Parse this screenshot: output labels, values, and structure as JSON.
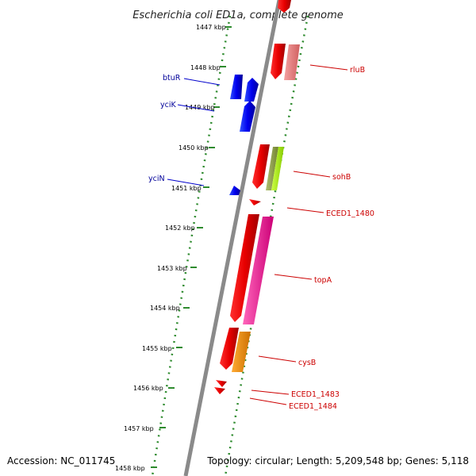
{
  "title": "Escherichia coli ED1a, complete genome",
  "footer": {
    "accession": "Accession: NC_011745",
    "topology": "Topology: circular; Length: 5,209,548 bp; Genes: 5,118"
  },
  "colors": {
    "backbone": "#808080",
    "ticks": "#2e8b2e",
    "reverse_strand_gene": "#0000ff",
    "forward_label": "#cc0000",
    "reverse_label": "#000099"
  },
  "ticks": [
    "1447 kbp",
    "1448 kbp",
    "1449 kbp",
    "1450 kbp",
    "1451 kbp",
    "1452 kbp",
    "1453 kbp",
    "1454 kbp",
    "1455 kbp",
    "1456 kbp",
    "1457 kbp",
    "1458 kbp"
  ],
  "genes": [
    {
      "name": "rluB",
      "strand": "forward"
    },
    {
      "name": "btuR",
      "strand": "reverse"
    },
    {
      "name": "yciK",
      "strand": "reverse"
    },
    {
      "name": "sohB",
      "strand": "forward"
    },
    {
      "name": "yciN",
      "strand": "reverse"
    },
    {
      "name": "ECED1_1480",
      "strand": "forward"
    },
    {
      "name": "topA",
      "strand": "forward"
    },
    {
      "name": "cysB",
      "strand": "forward"
    },
    {
      "name": "ECED1_1483",
      "strand": "forward"
    },
    {
      "name": "ECED1_1484",
      "strand": "forward"
    }
  ]
}
